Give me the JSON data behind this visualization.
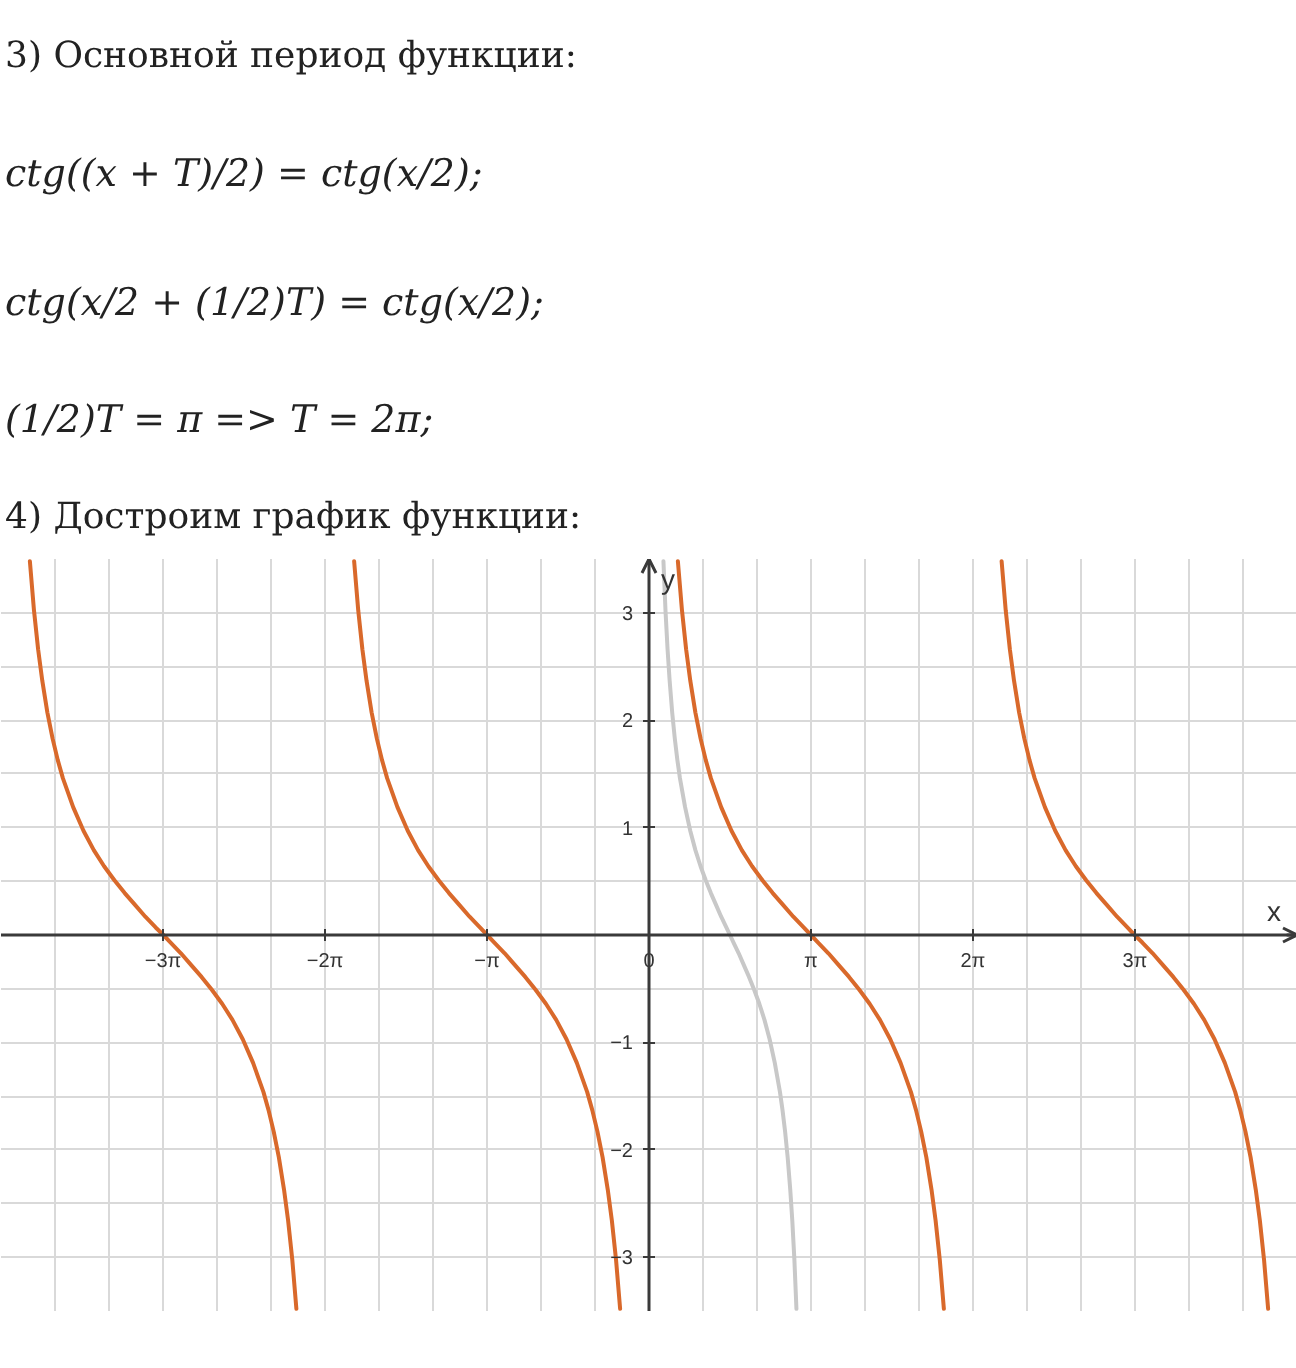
{
  "chart_data": {
    "type": "line",
    "title": "4) Достроим график функции:",
    "annotations": [
      "3) Основной период функции:",
      "ctg((x + T)/2) = ctg(x/2);",
      "ctg(x/2 + (1/2)T) = ctg(x/2);",
      "(1/2)T = π => T = 2π;"
    ],
    "xlabel": "x",
    "ylabel": "y",
    "xlim": [
      -12.57,
      12.57
    ],
    "ylim": [
      -3.5,
      3.5
    ],
    "xticks": [
      {
        "value": -11.519,
        "label": null
      },
      {
        "value": -10.472,
        "label": null
      },
      {
        "value": -9.425,
        "label": "−3π"
      },
      {
        "value": -8.378,
        "label": null
      },
      {
        "value": -7.33,
        "label": null
      },
      {
        "value": -6.283,
        "label": "−2π"
      },
      {
        "value": -5.236,
        "label": null
      },
      {
        "value": -4.189,
        "label": null
      },
      {
        "value": -3.142,
        "label": "−π"
      },
      {
        "value": -2.094,
        "label": null
      },
      {
        "value": -1.047,
        "label": null
      },
      0,
      {
        "value": 1.047,
        "label": null
      },
      {
        "value": 2.094,
        "label": null
      },
      {
        "value": 3.142,
        "label": "π"
      },
      {
        "value": 4.189,
        "label": null
      },
      {
        "value": 5.236,
        "label": null
      },
      {
        "value": 6.283,
        "label": "2π"
      },
      {
        "value": 7.33,
        "label": null
      },
      {
        "value": 8.378,
        "label": null
      },
      {
        "value": 9.425,
        "label": "3π"
      },
      {
        "value": 10.472,
        "label": null
      },
      {
        "value": 11.519,
        "label": null
      }
    ],
    "yticks": [
      {
        "value": -3,
        "label": "−3"
      },
      {
        "value": -2.5,
        "label": null
      },
      {
        "value": -2,
        "label": "−2"
      },
      {
        "value": -1.5,
        "label": null
      },
      {
        "value": -1,
        "label": "−1"
      },
      {
        "value": -0.5,
        "label": null
      },
      {
        "value": 0.5,
        "label": null
      },
      1,
      {
        "value": 1.5,
        "label": null
      },
      2,
      {
        "value": 2.5,
        "label": null
      },
      3
    ],
    "grid": true,
    "series": [
      {
        "color": "#d9692b",
        "x": [
          -12.01,
          -11.93,
          -11.85,
          -11.77,
          -11.67,
          -11.57,
          -11.47,
          -11.37,
          -11.17,
          -10.97,
          -10.77,
          -10.57,
          -10.37,
          -10.17,
          -9.97,
          -9.77,
          -9.57,
          -9.42,
          -9.28,
          -9.08,
          -8.88,
          -8.68,
          -8.48,
          -8.28,
          -8.08,
          -7.88,
          -7.68,
          -7.48,
          -7.38,
          -7.28,
          -7.18,
          -7.08,
          -7.0,
          -6.92,
          -6.84,
          -6.28,
          -5.72,
          -5.64,
          -5.56,
          -5.48,
          -5.38,
          -5.28,
          -5.18,
          -5.08,
          -4.88,
          -4.68,
          -4.48,
          -4.28,
          -4.08,
          -3.88,
          -3.68,
          -3.48,
          -3.28,
          -3.14,
          -3.0,
          -2.8,
          -2.6,
          -2.4,
          -2.2,
          -2.0,
          -1.8,
          -1.6,
          -1.4,
          -1.2,
          -1.1,
          -1.0,
          -0.9,
          -0.8,
          -0.72,
          -0.64,
          -0.56,
          0,
          0.56,
          0.64,
          0.72,
          0.8,
          0.9,
          1.0,
          1.1,
          1.2,
          1.4,
          1.6,
          1.8,
          2.0,
          2.2,
          2.4,
          2.6,
          2.8,
          3.0,
          3.14,
          3.28,
          3.48,
          3.68,
          3.88,
          4.08,
          4.28,
          4.48,
          4.68,
          4.88,
          5.08,
          5.18,
          5.28,
          5.38,
          5.48,
          5.56,
          5.64,
          5.72,
          6.28,
          6.84,
          6.92,
          7.0,
          7.08,
          7.18,
          7.28,
          7.38,
          7.48,
          7.68,
          7.88,
          8.08,
          8.28,
          8.48,
          8.68,
          8.88,
          9.08,
          9.28,
          9.42,
          9.57,
          9.77,
          9.97,
          10.17,
          10.37,
          10.57,
          10.77,
          10.97,
          11.17,
          11.37,
          11.47,
          11.57,
          11.67,
          11.77,
          11.85,
          11.93,
          12.01
        ],
        "values": [
          3.48,
          3.02,
          2.66,
          2.37,
          2.07,
          1.83,
          1.63,
          1.46,
          1.19,
          0.97,
          0.79,
          0.64,
          0.51,
          0.39,
          0.28,
          0.17,
          0.07,
          0,
          -0.07,
          -0.17,
          -0.28,
          -0.39,
          -0.51,
          -0.64,
          -0.79,
          -0.97,
          -1.19,
          -1.46,
          -1.63,
          -1.83,
          -2.07,
          -2.37,
          -2.66,
          -3.02,
          -3.48,
          null,
          3.48,
          3.02,
          2.66,
          2.37,
          2.07,
          1.83,
          1.63,
          1.46,
          1.19,
          0.97,
          0.79,
          0.64,
          0.51,
          0.39,
          0.28,
          0.17,
          0.07,
          0,
          -0.07,
          -0.17,
          -0.28,
          -0.39,
          -0.51,
          -0.64,
          -0.79,
          -0.97,
          -1.19,
          -1.46,
          -1.63,
          -1.83,
          -2.07,
          -2.37,
          -2.66,
          -3.02,
          -3.48,
          null,
          3.48,
          3.02,
          2.66,
          2.37,
          2.07,
          1.83,
          1.63,
          1.46,
          1.19,
          0.97,
          0.79,
          0.64,
          0.51,
          0.39,
          0.28,
          0.17,
          0.07,
          0,
          -0.07,
          -0.17,
          -0.28,
          -0.39,
          -0.51,
          -0.64,
          -0.79,
          -0.97,
          -1.19,
          -1.46,
          -1.63,
          -1.83,
          -2.07,
          -2.37,
          -2.66,
          -3.02,
          -3.48,
          null,
          3.48,
          3.02,
          2.66,
          2.37,
          2.07,
          1.83,
          1.63,
          1.46,
          1.19,
          0.97,
          0.79,
          0.64,
          0.51,
          0.39,
          0.28,
          0.17,
          0.07,
          0,
          -0.07,
          -0.17,
          -0.28,
          -0.39,
          -0.51,
          -0.64,
          -0.79,
          -0.97,
          -1.19,
          -1.46,
          -1.63,
          -1.83,
          -2.07,
          -2.37,
          -2.66,
          -3.02,
          -3.48
        ]
      },
      {
        "color": "#c8c8c8",
        "x": [
          0.28,
          0.32,
          0.36,
          0.4,
          0.45,
          0.5,
          0.55,
          0.6,
          0.7,
          0.8,
          0.9,
          1.0,
          1.1,
          1.2,
          1.3,
          1.4,
          1.5,
          1.57,
          1.64,
          1.74,
          1.84,
          1.94,
          2.04,
          2.14,
          2.24,
          2.34,
          2.44,
          2.54,
          2.59,
          2.64,
          2.69,
          2.74,
          2.78,
          2.82,
          2.86
        ],
        "values": [
          3.48,
          3.02,
          2.66,
          2.37,
          2.07,
          1.83,
          1.63,
          1.46,
          1.19,
          0.97,
          0.79,
          0.64,
          0.51,
          0.39,
          0.28,
          0.17,
          0.07,
          0,
          -0.07,
          -0.17,
          -0.28,
          -0.39,
          -0.51,
          -0.64,
          -0.79,
          -0.97,
          -1.19,
          -1.46,
          -1.63,
          -1.83,
          -2.07,
          -2.37,
          -2.66,
          -3.02,
          -3.48
        ]
      }
    ]
  }
}
